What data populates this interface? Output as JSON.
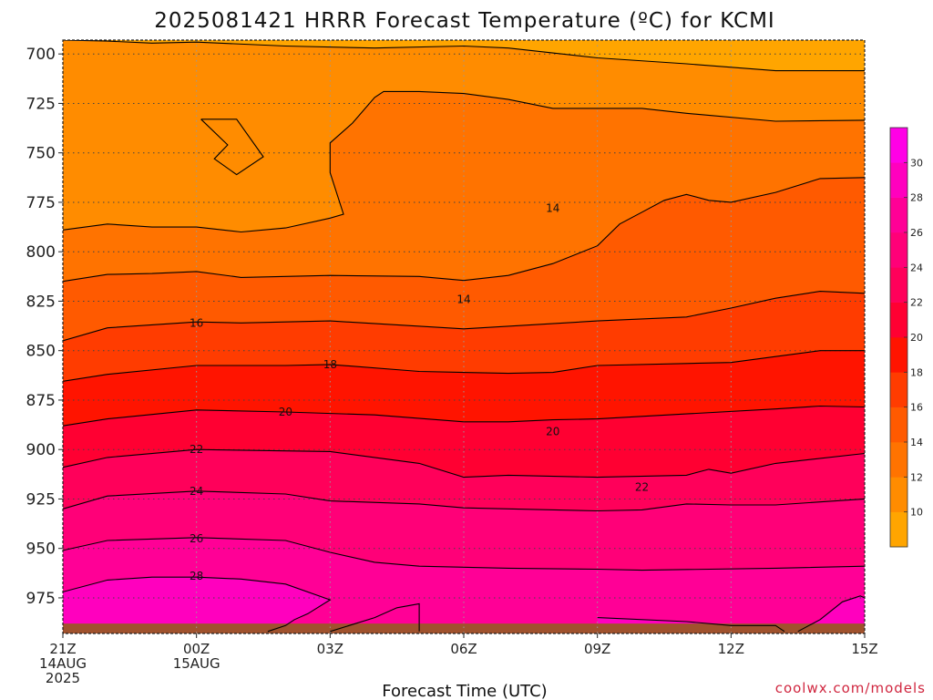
{
  "chart_data": {
    "type": "heatmap",
    "title": "2025081421 HRRR Forecast Temperature (ºC) for KCMI",
    "xlabel": "Forecast Time (UTC)",
    "ylabel": "",
    "x_ticks": [
      {
        "hour": 0,
        "lines": [
          "21Z",
          "14AUG",
          "2025"
        ]
      },
      {
        "hour": 3,
        "lines": [
          "00Z",
          "15AUG"
        ]
      },
      {
        "hour": 6,
        "lines": [
          "03Z"
        ]
      },
      {
        "hour": 9,
        "lines": [
          "06Z"
        ]
      },
      {
        "hour": 12,
        "lines": [
          "09Z"
        ]
      },
      {
        "hour": 15,
        "lines": [
          "12Z"
        ]
      },
      {
        "hour": 18,
        "lines": [
          "15Z"
        ]
      }
    ],
    "y_ticks": [
      700,
      725,
      750,
      775,
      800,
      825,
      850,
      875,
      900,
      925,
      950,
      975
    ],
    "xlim": [
      0,
      18
    ],
    "ylim": [
      993,
      693
    ],
    "grid": true,
    "colorbar": {
      "levels": [
        8,
        10,
        12,
        14,
        16,
        18,
        20,
        22,
        24,
        26,
        28,
        30,
        32
      ],
      "tick_labels": [
        10,
        12,
        14,
        16,
        18,
        20,
        22,
        24,
        26,
        28,
        30
      ],
      "colors": [
        "#ffa500",
        "#ff8c00",
        "#ff7300",
        "#ff5a00",
        "#ff3c00",
        "#ff1400",
        "#ff0032",
        "#ff005a",
        "#ff0078",
        "#ff0096",
        "#ff00be",
        "#ff00e6"
      ]
    },
    "contours": [
      {
        "value": 10,
        "label": "",
        "points": [
          [
            0,
            693
          ],
          [
            1,
            693.5
          ],
          [
            2,
            694.5
          ],
          [
            3,
            694
          ],
          [
            5,
            696
          ],
          [
            7,
            697
          ],
          [
            9,
            696
          ],
          [
            10,
            697
          ],
          [
            12,
            702
          ],
          [
            14,
            705
          ],
          [
            16,
            708.5
          ],
          [
            18,
            708.5
          ]
        ]
      },
      {
        "value": 12,
        "label": "",
        "points": [
          [
            0,
            789
          ],
          [
            1,
            786
          ],
          [
            2,
            787.5
          ],
          [
            3,
            787.5
          ],
          [
            4,
            790
          ],
          [
            5,
            788
          ],
          [
            6,
            783
          ],
          [
            6.3,
            781
          ],
          [
            6.0,
            760
          ],
          [
            6.0,
            745
          ],
          [
            6.5,
            735
          ],
          [
            7,
            722
          ],
          [
            7.2,
            719
          ],
          [
            8,
            719
          ],
          [
            9,
            720
          ],
          [
            10,
            723
          ],
          [
            11,
            727.5
          ],
          [
            12,
            727.5
          ],
          [
            13,
            727.5
          ],
          [
            14,
            730
          ],
          [
            16,
            734
          ],
          [
            18,
            733.5
          ]
        ]
      },
      {
        "value": 14,
        "label": "14",
        "label_pos": [
          11,
          778
        ],
        "points": [
          [
            0,
            815
          ],
          [
            1,
            811.5
          ],
          [
            2,
            811
          ],
          [
            3,
            810
          ],
          [
            4,
            813
          ],
          [
            6,
            812
          ],
          [
            8,
            812.5
          ],
          [
            9,
            814.5
          ],
          [
            10,
            812
          ],
          [
            11,
            806
          ],
          [
            12,
            797
          ],
          [
            12.5,
            786
          ],
          [
            13,
            780
          ],
          [
            13.5,
            774
          ],
          [
            14,
            771
          ],
          [
            14.5,
            774
          ],
          [
            15,
            775
          ],
          [
            16,
            770
          ],
          [
            17,
            763
          ],
          [
            18,
            762.5
          ]
        ]
      },
      {
        "value": 16,
        "label": "16",
        "label_pos": [
          3,
          836
        ],
        "points": [
          [
            0,
            845
          ],
          [
            1,
            838.5
          ],
          [
            3,
            835.5
          ],
          [
            4,
            836
          ],
          [
            6,
            835
          ],
          [
            9,
            839
          ],
          [
            12,
            835
          ],
          [
            14,
            833
          ],
          [
            15,
            828.5
          ],
          [
            16,
            823.5
          ],
          [
            17,
            820
          ],
          [
            18,
            821
          ]
        ]
      },
      {
        "value": 18,
        "label": "18",
        "label_pos": [
          6,
          857
        ],
        "points": [
          [
            0,
            865.5
          ],
          [
            1,
            862
          ],
          [
            3,
            857.5
          ],
          [
            5,
            857.5
          ],
          [
            6,
            857
          ],
          [
            8,
            860.5
          ],
          [
            10,
            861.5
          ],
          [
            11,
            861
          ],
          [
            12,
            857.5
          ],
          [
            14,
            856.5
          ],
          [
            15,
            856
          ],
          [
            16,
            853
          ],
          [
            17,
            850
          ],
          [
            18,
            850
          ]
        ]
      },
      {
        "value": 20,
        "label": "20",
        "label_pos": [
          5,
          881
        ],
        "points": [
          [
            0,
            888
          ],
          [
            1,
            884.5
          ],
          [
            3,
            880
          ],
          [
            5,
            881
          ],
          [
            7,
            882.5
          ],
          [
            9,
            886
          ],
          [
            10,
            886
          ],
          [
            11,
            885
          ],
          [
            12,
            884.5
          ],
          [
            14,
            882
          ],
          [
            16,
            879.5
          ],
          [
            17,
            878
          ],
          [
            18,
            878.5
          ]
        ]
      },
      {
        "value": 22,
        "label": "22",
        "label_pos": [
          3,
          900
        ],
        "points": [
          [
            0,
            909
          ],
          [
            1,
            904
          ],
          [
            3,
            900
          ],
          [
            6,
            901
          ],
          [
            8,
            907
          ],
          [
            9,
            914
          ],
          [
            10,
            913
          ],
          [
            12,
            914
          ],
          [
            14,
            913
          ],
          [
            14.5,
            910
          ],
          [
            15,
            912
          ],
          [
            16,
            907
          ],
          [
            18,
            902
          ]
        ]
      },
      {
        "value": 24,
        "label": "24",
        "label_pos": [
          3,
          921
        ],
        "points": [
          [
            0,
            930
          ],
          [
            1,
            923.5
          ],
          [
            3,
            921
          ],
          [
            5,
            922.5
          ],
          [
            6,
            926
          ],
          [
            8,
            927.5
          ],
          [
            9,
            929.5
          ],
          [
            10,
            930
          ],
          [
            12,
            931
          ],
          [
            13,
            930.5
          ],
          [
            14,
            927.5
          ],
          [
            15,
            928
          ],
          [
            16,
            928
          ],
          [
            18,
            925
          ]
        ]
      },
      {
        "value": 26,
        "label": "26",
        "label_pos": [
          3,
          945
        ],
        "points": [
          [
            0,
            951
          ],
          [
            1,
            946
          ],
          [
            3,
            944.5
          ],
          [
            5,
            946
          ],
          [
            6,
            952
          ],
          [
            7,
            957
          ],
          [
            8,
            959
          ],
          [
            10,
            960
          ],
          [
            12,
            960.5
          ],
          [
            13,
            961
          ],
          [
            16,
            960
          ],
          [
            18,
            959
          ]
        ]
      },
      {
        "value": 28,
        "label": "28",
        "label_pos": [
          3,
          964
        ],
        "points": [
          [
            0,
            972
          ],
          [
            1,
            966
          ],
          [
            2,
            964.5
          ],
          [
            3,
            964.5
          ],
          [
            4,
            965.5
          ],
          [
            5,
            968
          ],
          [
            6,
            976
          ],
          [
            5.5,
            983
          ],
          [
            5.2,
            986
          ],
          [
            5,
            989
          ],
          [
            4.6,
            992
          ]
        ]
      },
      {
        "value": 26,
        "label": "",
        "points": [
          [
            6,
            992
          ],
          [
            7,
            985
          ],
          [
            7.5,
            980
          ],
          [
            8,
            978
          ],
          [
            8,
            992
          ]
        ]
      },
      {
        "value": 28,
        "label": "",
        "points": [
          [
            12,
            985
          ],
          [
            14,
            987
          ],
          [
            15,
            989
          ],
          [
            16,
            989
          ],
          [
            16.2,
            992
          ]
        ]
      },
      {
        "value": 28,
        "label": "",
        "points": [
          [
            16.5,
            992
          ],
          [
            17,
            986
          ],
          [
            17.5,
            977
          ],
          [
            17.9,
            974
          ],
          [
            18,
            975
          ]
        ]
      },
      {
        "value": 14,
        "label": "",
        "points": [
          [
            3.1,
            733
          ],
          [
            3.7,
            746
          ],
          [
            3.4,
            753
          ],
          [
            3.9,
            761
          ],
          [
            4.5,
            752
          ],
          [
            3.9,
            733
          ],
          [
            3.1,
            733
          ]
        ]
      }
    ],
    "band_labels": [
      {
        "value": 14,
        "x": 9,
        "p": 824
      },
      {
        "value": 20,
        "x": 11,
        "p": 891
      },
      {
        "value": 22,
        "x": 13,
        "p": 919
      }
    ],
    "surface": {
      "pressure_top": 988
    }
  },
  "credit": "coolwx.com/models",
  "colors": {
    "ground": "#a0522d",
    "contour": "#000000",
    "grid": "#444444"
  }
}
